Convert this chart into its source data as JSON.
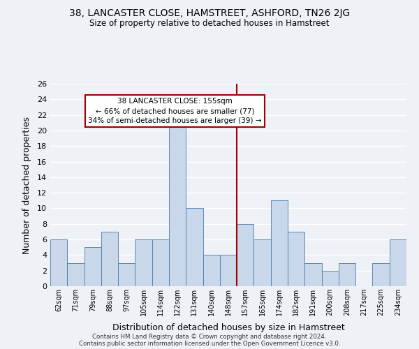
{
  "title1": "38, LANCASTER CLOSE, HAMSTREET, ASHFORD, TN26 2JG",
  "title2": "Size of property relative to detached houses in Hamstreet",
  "xlabel": "Distribution of detached houses by size in Hamstreet",
  "ylabel": "Number of detached properties",
  "bar_labels": [
    "62sqm",
    "71sqm",
    "79sqm",
    "88sqm",
    "97sqm",
    "105sqm",
    "114sqm",
    "122sqm",
    "131sqm",
    "140sqm",
    "148sqm",
    "157sqm",
    "165sqm",
    "174sqm",
    "182sqm",
    "191sqm",
    "200sqm",
    "208sqm",
    "217sqm",
    "225sqm",
    "234sqm"
  ],
  "bar_values": [
    6,
    3,
    5,
    7,
    3,
    6,
    6,
    21,
    10,
    4,
    4,
    8,
    6,
    11,
    7,
    3,
    2,
    3,
    0,
    3,
    6
  ],
  "bar_color": "#c8d8ea",
  "bar_edge_color": "#4a7aaa",
  "vline_color": "#990000",
  "annotation_title": "38 LANCASTER CLOSE: 155sqm",
  "annotation_line1": "← 66% of detached houses are smaller (77)",
  "annotation_line2": "34% of semi-detached houses are larger (39) →",
  "annotation_box_edgecolor": "#990000",
  "ylim": [
    0,
    26
  ],
  "yticks": [
    0,
    2,
    4,
    6,
    8,
    10,
    12,
    14,
    16,
    18,
    20,
    22,
    24,
    26
  ],
  "footer1": "Contains HM Land Registry data © Crown copyright and database right 2024.",
  "footer2": "Contains public sector information licensed under the Open Government Licence v3.0.",
  "bg_color": "#eef2f7",
  "grid_color": "#ffffff"
}
